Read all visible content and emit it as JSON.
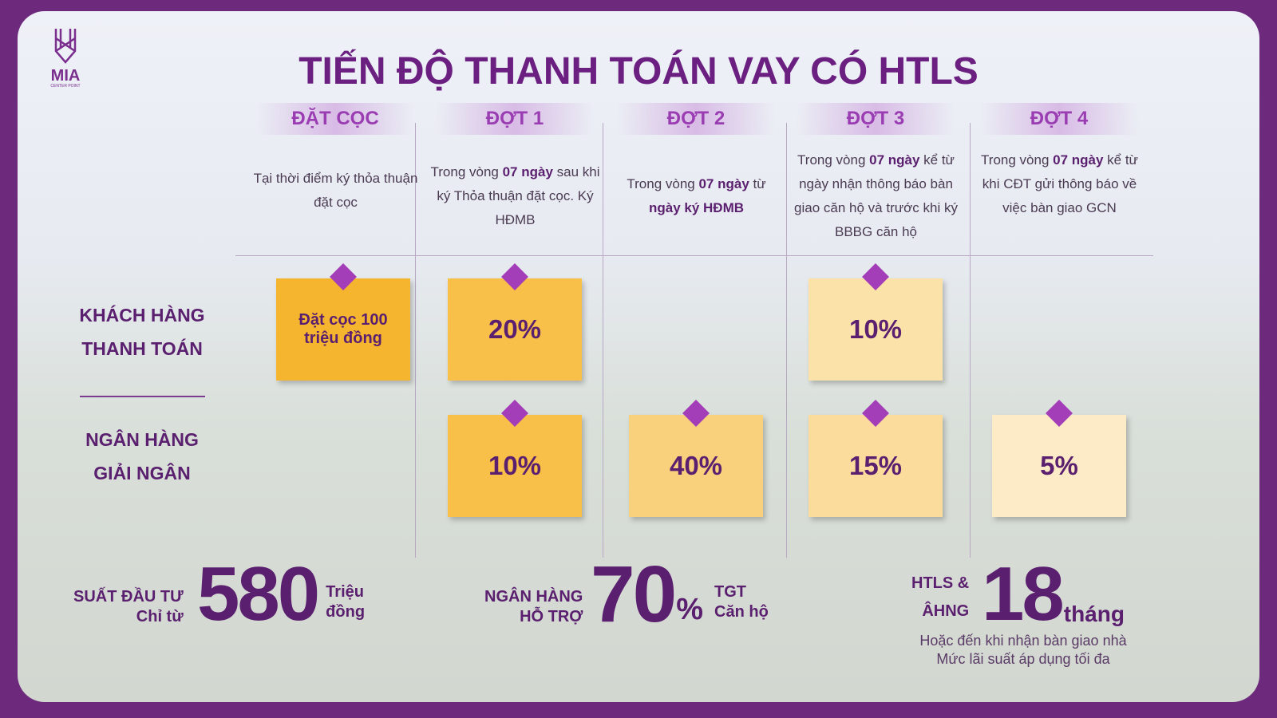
{
  "logo": {
    "name": "MIA",
    "tagline": "CENTER POINT"
  },
  "title": "TIẾN ĐỘ THANH TOÁN VAY CÓ HTLS",
  "columns": [
    {
      "header": "ĐẶT CỌC",
      "description": [
        {
          "text": "Tại thời điểm ký thỏa thuận đặt cọc"
        }
      ]
    },
    {
      "header": "ĐỢT 1",
      "description": [
        {
          "text": "Trong vòng "
        },
        {
          "text": "07 ngày",
          "bold": true
        },
        {
          "text": " sau khi ký Thỏa thuận đặt cọc. Ký HĐMB"
        }
      ]
    },
    {
      "header": "ĐỢT 2",
      "description": [
        {
          "text": "Trong vòng "
        },
        {
          "text": "07 ngày",
          "bold": true
        },
        {
          "text": " từ "
        },
        {
          "text": "ngày ký HĐMB",
          "bold": true
        }
      ]
    },
    {
      "header": "ĐỢT 3",
      "description": [
        {
          "text": "Trong vòng "
        },
        {
          "text": "07 ngày",
          "bold": true
        },
        {
          "text": " kể từ ngày nhận thông báo bàn giao căn hộ và trước khi ký BBBG căn hộ"
        }
      ]
    },
    {
      "header": "ĐỢT 4",
      "description": [
        {
          "text": "Trong vòng "
        },
        {
          "text": "07 ngày",
          "bold": true
        },
        {
          "text": " kể từ khi CĐT gửi thông báo về việc bàn giao GCN"
        }
      ]
    }
  ],
  "rows": [
    {
      "label": [
        "KHÁCH HÀNG",
        "THANH TOÁN"
      ],
      "cells": [
        {
          "text": "Đặt cọc 100 triệu đồng",
          "color": "#f6b52e"
        },
        {
          "text": "20%",
          "color": "#f8bf49"
        },
        null,
        {
          "text": "10%",
          "color": "#fbe2a9"
        },
        null
      ]
    },
    {
      "label": [
        "NGÂN HÀNG",
        "GIẢI NGÂN"
      ],
      "cells": [
        null,
        {
          "text": "10%",
          "color": "#f8bf49"
        },
        {
          "text": "40%",
          "color": "#f9d07c"
        },
        {
          "text": "15%",
          "color": "#fbdc9c"
        },
        {
          "text": "5%",
          "color": "#fcebc6"
        }
      ]
    }
  ],
  "stats": [
    {
      "label": [
        "SUẤT ĐẦU TƯ",
        "Chỉ từ"
      ],
      "number": "580",
      "unit": [
        "Triệu",
        "đồng"
      ]
    },
    {
      "label": [
        "NGÂN HÀNG",
        "HỖ TRỢ"
      ],
      "number": "70",
      "suffix": "%",
      "unit": [
        "TGT",
        "Căn hộ"
      ]
    },
    {
      "label": [
        "HTLS &",
        "ÂHNG"
      ],
      "number": "18",
      "suffix": "tháng"
    }
  ],
  "footnote": [
    "Hoặc đến khi nhận bàn giao nhà",
    "Mức lãi suất áp dụng tối đa"
  ]
}
